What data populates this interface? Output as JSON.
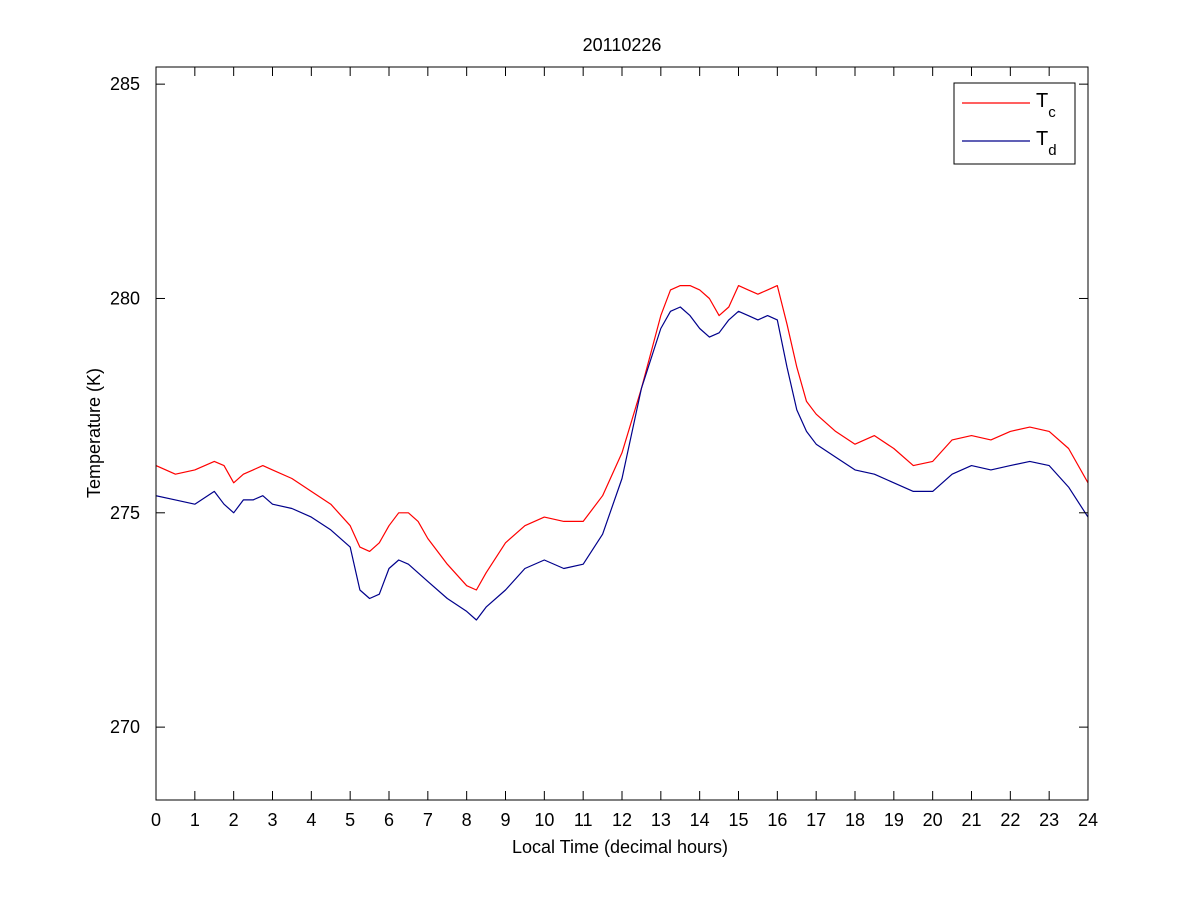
{
  "figure_background": "#ffffff",
  "chart_data": {
    "type": "line",
    "title": "20110226",
    "xlabel": "Local Time (decimal hours)",
    "ylabel": "Temperature (K)",
    "xlim": [
      0,
      24
    ],
    "ylim": [
      268.3,
      285.4
    ],
    "x_ticks": [
      0,
      1,
      2,
      3,
      4,
      5,
      6,
      7,
      8,
      9,
      10,
      11,
      12,
      13,
      14,
      15,
      16,
      17,
      18,
      19,
      20,
      21,
      22,
      23,
      24
    ],
    "y_ticks": [
      270,
      275,
      280,
      285
    ],
    "grid": false,
    "legend_position": "top-right",
    "legend": [
      {
        "base": "T",
        "sub": "c"
      },
      {
        "base": "T",
        "sub": "d"
      }
    ],
    "x": [
      0,
      0.5,
      1,
      1.5,
      1.75,
      2,
      2.25,
      2.5,
      2.75,
      3,
      3.5,
      4,
      4.5,
      5,
      5.25,
      5.5,
      5.75,
      6,
      6.25,
      6.5,
      6.75,
      7,
      7.5,
      8,
      8.25,
      8.5,
      9,
      9.5,
      10,
      10.5,
      11,
      11.5,
      12,
      12.5,
      13,
      13.25,
      13.5,
      13.75,
      14,
      14.25,
      14.5,
      14.75,
      15,
      15.25,
      15.5,
      15.75,
      16,
      16.25,
      16.5,
      16.75,
      17,
      17.5,
      18,
      18.5,
      19,
      19.5,
      20,
      20.5,
      21,
      21.5,
      22,
      22.5,
      23,
      23.5,
      24
    ],
    "series": [
      {
        "name": "T_c",
        "color": "#ff0000",
        "values": [
          276.1,
          275.9,
          276.0,
          276.2,
          276.1,
          275.7,
          275.9,
          276.0,
          276.1,
          276.0,
          275.8,
          275.5,
          275.2,
          274.7,
          274.2,
          274.1,
          274.3,
          274.7,
          275.0,
          275.0,
          274.8,
          274.4,
          273.8,
          273.3,
          273.2,
          273.6,
          274.3,
          274.7,
          274.9,
          274.8,
          274.8,
          275.4,
          276.4,
          277.9,
          279.6,
          280.2,
          280.3,
          280.3,
          280.2,
          280.0,
          279.6,
          279.8,
          280.3,
          280.2,
          280.1,
          280.2,
          280.3,
          279.4,
          278.4,
          277.6,
          277.3,
          276.9,
          276.6,
          276.8,
          276.5,
          276.1,
          276.2,
          276.7,
          276.8,
          276.7,
          276.9,
          277.0,
          276.9,
          276.5,
          275.7
        ]
      },
      {
        "name": "T_d",
        "color": "#00008b",
        "values": [
          275.4,
          275.3,
          275.2,
          275.5,
          275.2,
          275.0,
          275.3,
          275.3,
          275.4,
          275.2,
          275.1,
          274.9,
          274.6,
          274.2,
          273.2,
          273.0,
          273.1,
          273.7,
          273.9,
          273.8,
          273.6,
          273.4,
          273.0,
          272.7,
          272.5,
          272.8,
          273.2,
          273.7,
          273.9,
          273.7,
          273.8,
          274.5,
          275.8,
          277.9,
          279.3,
          279.7,
          279.8,
          279.6,
          279.3,
          279.1,
          279.2,
          279.5,
          279.7,
          279.6,
          279.5,
          279.6,
          279.5,
          278.4,
          277.4,
          276.9,
          276.6,
          276.3,
          276.0,
          275.9,
          275.7,
          275.5,
          275.5,
          275.9,
          276.1,
          276.0,
          276.1,
          276.2,
          276.1,
          275.6,
          274.9
        ]
      }
    ]
  }
}
